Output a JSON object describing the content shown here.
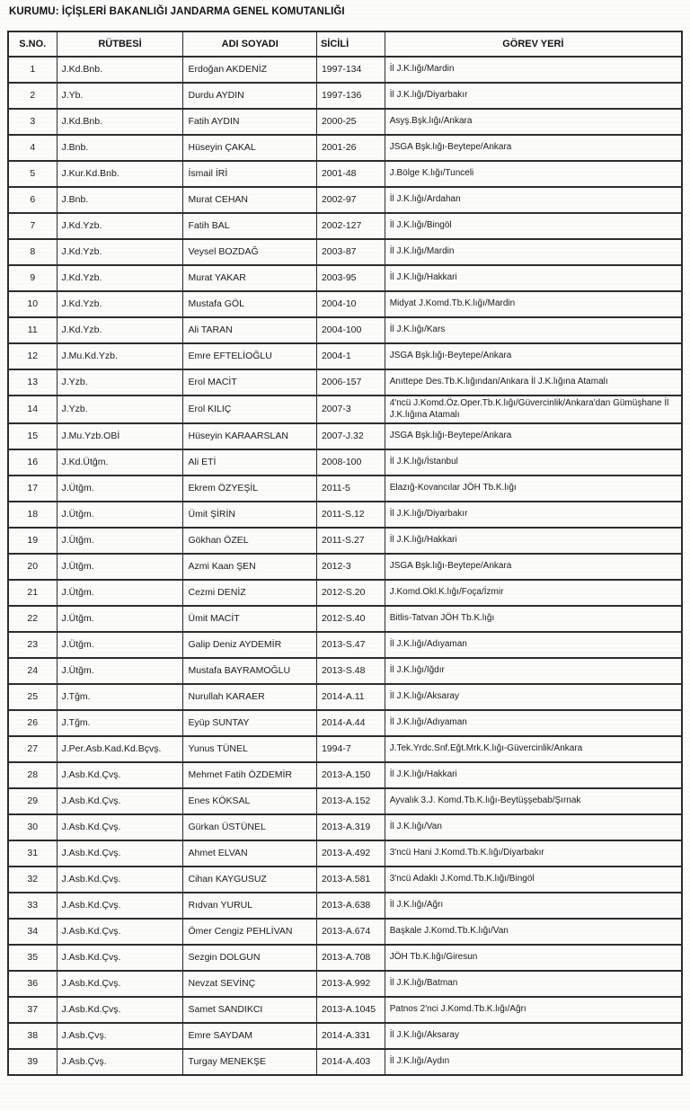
{
  "document": {
    "title": "KURUMU: İÇİŞLERİ BAKANLIĞI JANDARMA GENEL KOMUTANLIĞI"
  },
  "table": {
    "headers": [
      "S.NO.",
      "RÜTBESİ",
      "ADI SOYADI",
      "SİCİLİ",
      "GÖREV YERİ"
    ],
    "rows": [
      [
        "1",
        "J.Kd.Bnb.",
        "Erdoğan AKDENİZ",
        "1997-134",
        "İl J.K.lığı/Mardin"
      ],
      [
        "2",
        "J.Yb.",
        "Durdu AYDIN",
        "1997-136",
        "İl J.K.lığı/Diyarbakır"
      ],
      [
        "3",
        "J.Kd.Bnb.",
        "Fatih AYDIN",
        "2000-25",
        "Asyş.Bşk.lığı/Ankara"
      ],
      [
        "4",
        "J.Bnb.",
        "Hüseyin ÇAKAL",
        "2001-26",
        "JSGA Bşk.lığı-Beytepe/Ankara"
      ],
      [
        "5",
        "J.Kur.Kd.Bnb.",
        "İsmail İRİ",
        "2001-48",
        "J.Bölge K.lığı/Tunceli"
      ],
      [
        "6",
        "J.Bnb.",
        "Murat CEHAN",
        "2002-97",
        "İl J.K.lığı/Ardahan"
      ],
      [
        "7",
        "J.Kd.Yzb.",
        "Fatih BAL",
        "2002-127",
        "İl J.K.lığı/Bingöl"
      ],
      [
        "8",
        "J.Kd.Yzb.",
        "Veysel BOZDAĞ",
        "2003-87",
        "İl J.K.lığı/Mardin"
      ],
      [
        "9",
        "J.Kd.Yzb.",
        "Murat YAKAR",
        "2003-95",
        "İl J.K.lığı/Hakkari"
      ],
      [
        "10",
        "J.Kd.Yzb.",
        "Mustafa GÖL",
        "2004-10",
        "Midyat J.Komd.Tb.K.lığı/Mardin"
      ],
      [
        "11",
        "J.Kd.Yzb.",
        "Ali TARAN",
        "2004-100",
        "İl J.K.lığı/Kars"
      ],
      [
        "12",
        "J.Mu.Kd.Yzb.",
        "Emre EFTELİOĞLU",
        "2004-1",
        "JSGA Bşk.lığı-Beytepe/Ankara"
      ],
      [
        "13",
        "J.Yzb.",
        "Erol MACİT",
        "2006-157",
        "Anıttepe Des.Tb.K.lığından/Ankara İl J.K.lığına Atamalı"
      ],
      [
        "14",
        "J.Yzb.",
        "Erol KILIÇ",
        "2007-3",
        "4'ncü J.Komd.Öz.Oper.Tb.K.lığı/Güvercinlik/Ankara'dan  Gümüşhane İl J.K.lığına Atamalı"
      ],
      [
        "15",
        "J.Mu.Yzb.OBİ",
        "Hüseyin KARAARSLAN",
        "2007-J.32",
        "JSGA Bşk.lığı-Beytepe/Ankara"
      ],
      [
        "16",
        "J.Kd.Ütğm.",
        "Ali ETİ",
        "2008-100",
        "İl J.K.lığı/İstanbul"
      ],
      [
        "17",
        "J.Ütğm.",
        "Ekrem ÖZYEŞİL",
        "2011-5",
        "Elazığ-Kovancılar JÖH Tb.K.lığı"
      ],
      [
        "18",
        "J.Ütğm.",
        "Ümit ŞİRİN",
        "2011-S.12",
        "İl J.K.lığı/Diyarbakır"
      ],
      [
        "19",
        "J.Ütğm.",
        "Gökhan ÖZEL",
        "2011-S.27",
        "İl J.K.lığı/Hakkari"
      ],
      [
        "20",
        "J.Ütğm.",
        "Azmi Kaan ŞEN",
        "2012-3",
        "JSGA Bşk.lığı-Beytepe/Ankara"
      ],
      [
        "21",
        "J.Ütğm.",
        "Cezmi DENİZ",
        "2012-S.20",
        "J.Komd.Okl.K.lığı/Foça/İzmir"
      ],
      [
        "22",
        "J.Ütğm.",
        "Ümit MACİT",
        "2012-S.40",
        "Bitlis-Tatvan  JÖH Tb.K.lığı"
      ],
      [
        "23",
        "J.Ütğm.",
        "Galip Deniz AYDEMİR",
        "2013-S.47",
        "İl J.K.lığı/Adıyaman"
      ],
      [
        "24",
        "J.Ütğm.",
        "Mustafa BAYRAMOĞLU",
        "2013-S.48",
        "İl J.K.lığı/Iğdır"
      ],
      [
        "25",
        "J.Tğm.",
        "Nurullah KARAER",
        "2014-A.11",
        "İl J.K.lığı/Aksaray"
      ],
      [
        "26",
        "J.Tğm.",
        "Eyüp SUNTAY",
        "2014-A.44",
        "İl J.K.lığı/Adıyaman"
      ],
      [
        "27",
        "J.Per.Asb.Kad.Kd.Bçvş.",
        "Yunus TÜNEL",
        "1994-7",
        "J.Tek.Yrdc.Snf.Eğt.Mrk.K.lığı-Güvercinlik/Ankara"
      ],
      [
        "28",
        "J.Asb.Kd.Çvş.",
        "Mehmet Fatih ÖZDEMİR",
        "2013-A.150",
        "İl J.K.lığı/Hakkari"
      ],
      [
        "29",
        "J.Asb.Kd.Çvş.",
        "Enes KÖKSAL",
        "2013-A.152",
        "Ayvalık 3.J. Komd.Tb.K.lığı-Beytüşşebab/Şırnak"
      ],
      [
        "30",
        "J.Asb.Kd.Çvş.",
        "Gürkan ÜSTÜNEL",
        "2013-A.319",
        "İl J.K.lığı/Van"
      ],
      [
        "31",
        "J.Asb.Kd.Çvş.",
        "Ahmet ELVAN",
        "2013-A.492",
        "3'ncü Hani J.Komd.Tb.K.lığı/Diyarbakır"
      ],
      [
        "32",
        "J.Asb.Kd.Çvş.",
        "Cihan KAYGUSUZ",
        "2013-A.581",
        "3'ncü Adaklı J.Komd.Tb.K.lığı/Bingöl"
      ],
      [
        "33",
        "J.Asb.Kd.Çvş.",
        "Rıdvan YURUL",
        "2013-A.638",
        "İl J.K.lığı/Ağrı"
      ],
      [
        "34",
        "J.Asb.Kd.Çvş.",
        "Ömer Cengiz PEHLİVAN",
        "2013-A.674",
        "Başkale J.Komd.Tb.K.lığı/Van"
      ],
      [
        "35",
        "J.Asb.Kd.Çvş.",
        "Sezgin DOLGUN",
        "2013-A.708",
        "JÖH Tb.K.lığı/Giresun"
      ],
      [
        "36",
        "J.Asb.Kd.Çvş.",
        "Nevzat SEVİNÇ",
        "2013-A.992",
        "İl J.K.lığı/Batman"
      ],
      [
        "37",
        "J.Asb.Kd.Çvş.",
        "Samet SANDIKCI",
        "2013-A.1045",
        "Patnos 2'nci J.Komd.Tb.K.lığı/Ağrı"
      ],
      [
        "38",
        "J.Asb.Çvş.",
        "Emre SAYDAM",
        "2014-A.331",
        "İl J.K.lığı/Aksaray"
      ],
      [
        "39",
        "J.Asb.Çvş.",
        "Turgay MENEKŞE",
        "2014-A.403",
        "İl J.K.lığı/Aydın"
      ]
    ]
  }
}
